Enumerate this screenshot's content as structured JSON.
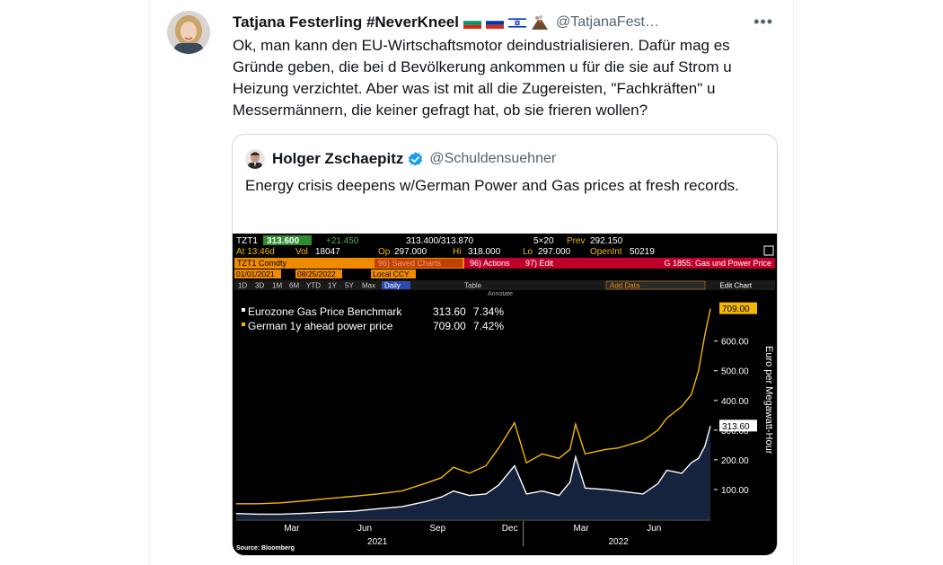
{
  "tweet": {
    "author_name": "Tatjana Festerling #NeverKneel",
    "handle": "@TatjanaFest…",
    "more": "•••",
    "text": "Ok, man kann den EU-Wirtschaftsmotor deindustrialisieren. Dafür mag es Gründe geben, die bei d Bevölkerung ankommen u für die sie auf Strom u Heizung verzichtet. Aber was ist mit all die Zugereisten, \"Fachkräften\" u Messermännern, die keiner gefragt hat, ob sie frieren wollen?",
    "icons": [
      "bulgaria-flag-icon",
      "russia-flag-icon",
      "israel-flag-icon",
      "volcano-icon"
    ]
  },
  "quote": {
    "author_name": "Holger Zschaepitz",
    "handle": "@Schuldensuehner",
    "text": "Energy crisis deepens w/German Power and Gas prices at fresh records."
  },
  "terminal": {
    "ticker": "TZT1",
    "last": "313.600",
    "change": "+21.450",
    "bid_ask": "313.400/313.870",
    "size": "5×20",
    "prev_label": "Prev",
    "prev": "292.150",
    "at": "At 13:46d",
    "vol_label": "Vol",
    "vol": "18047",
    "op_label": "Op",
    "op": "297.000",
    "hi_label": "Hi",
    "hi": "318.000",
    "lo_label": "Lo",
    "lo": "297.000",
    "oi_label": "OpenInt",
    "oi": "50219",
    "security": "TZT1 Comdty",
    "saved_charts": "96) Saved Charts",
    "actions": "96) Actions",
    "edit": "97) Edit",
    "chart_name": "G 1855: Gas und Power Price",
    "date_from": "01/01/2021",
    "date_to": "08/25/2022",
    "currency": "Local CCY",
    "periods": [
      "1D",
      "3D",
      "1M",
      "6M",
      "YTD",
      "1Y",
      "5Y",
      "Max"
    ],
    "frequency": "Daily",
    "table": "Table",
    "add_data": "Add Data",
    "edit_chart": "Edit Chart",
    "annotate": "Annotate",
    "source": "Source: Bloomberg"
  },
  "chart_data": {
    "type": "line",
    "ylabel": "Euro per Megawatt-Hour",
    "yticks": [
      100,
      200,
      300,
      400,
      500,
      600
    ],
    "ytick_labels": [
      "100.00",
      "200.00",
      "300.00",
      "400.00",
      "500.00",
      "600.00"
    ],
    "xtick_labels": [
      "Mar",
      "Jun",
      "Sep",
      "Dec",
      "Mar",
      "Jun"
    ],
    "year_labels": [
      "2021",
      "2022"
    ],
    "legend": [
      {
        "label": "Eurozone Gas Price Benchmark",
        "value": "313.60",
        "pct": "7.34%"
      },
      {
        "label": "German 1y ahead power price",
        "value": "709.00",
        "pct": "7.42%"
      }
    ],
    "last_labels": [
      "709.00",
      "313.60"
    ],
    "x": [
      "2021-01-04",
      "2021-02-01",
      "2021-03-01",
      "2021-04-01",
      "2021-05-01",
      "2021-06-01",
      "2021-07-01",
      "2021-08-01",
      "2021-09-01",
      "2021-09-20",
      "2021-10-05",
      "2021-10-25",
      "2021-11-15",
      "2021-12-01",
      "2021-12-21",
      "2022-01-05",
      "2022-01-25",
      "2022-02-15",
      "2022-03-01",
      "2022-03-08",
      "2022-03-20",
      "2022-04-15",
      "2022-05-01",
      "2022-06-01",
      "2022-06-20",
      "2022-07-01",
      "2022-07-20",
      "2022-08-01",
      "2022-08-10",
      "2022-08-18",
      "2022-08-25"
    ],
    "series": [
      {
        "name": "German 1y ahead power price",
        "color": "#f5b800",
        "values": [
          52,
          52,
          55,
          62,
          70,
          77,
          85,
          95,
          122,
          140,
          175,
          155,
          180,
          240,
          325,
          190,
          220,
          205,
          235,
          320,
          220,
          235,
          240,
          265,
          300,
          340,
          380,
          420,
          500,
          620,
          709
        ]
      },
      {
        "name": "Eurozone Gas Price Benchmark",
        "color": "#ffffff",
        "values": [
          19,
          17,
          17,
          20,
          24,
          27,
          35,
          42,
          60,
          75,
          95,
          80,
          85,
          115,
          180,
          85,
          95,
          80,
          125,
          210,
          105,
          100,
          95,
          85,
          120,
          165,
          155,
          190,
          205,
          245,
          313.6
        ]
      }
    ],
    "area_series": "Eurozone Gas Price Benchmark",
    "area_color": "#16233f"
  }
}
